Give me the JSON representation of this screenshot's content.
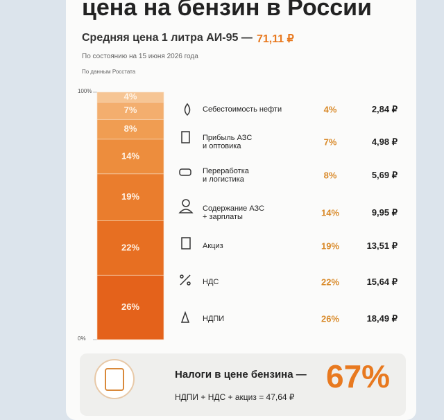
{
  "chart_data": {
    "type": "stacked_bar",
    "title": "цена на бензин в России",
    "subtitle": "Средняя цена 1 литра АИ-95 —",
    "price_label": "71,11 ₽",
    "note": "По состоянию на 15 июня 2026 года",
    "source": "По данным Росстата",
    "ylim": [
      0,
      100
    ],
    "yticks": [
      {
        "value": 0,
        "label": "0%"
      },
      {
        "value": 100,
        "label": "100%"
      }
    ],
    "series": [
      {
        "name": "Себестоимость нефти",
        "color": "#f6c594",
        "values": [
          4
        ],
        "value_labels": [
          "4%"
        ]
      },
      {
        "name": "Прибыль АЗС\nи оптовика",
        "color": "#f3ae6e",
        "values": [
          7
        ],
        "value_labels": [
          "7%"
        ]
      },
      {
        "name": "Переработка\nи логистика",
        "color": "#f09d52",
        "values": [
          8
        ],
        "value_labels": [
          "8%"
        ]
      },
      {
        "name": "Содержание АЗС\n+ зарплаты",
        "color": "#ed8d3d",
        "values": [
          14
        ],
        "value_labels": [
          "14%"
        ]
      },
      {
        "name": "Акциз",
        "color": "#ea7d2d",
        "values": [
          19
        ],
        "value_labels": [
          "19%"
        ]
      },
      {
        "name": "НДС",
        "color": "#e76f22",
        "values": [
          22
        ],
        "value_labels": [
          "22%"
        ]
      },
      {
        "name": "НДПИ",
        "color": "#e4621b",
        "values": [
          26
        ],
        "value_labels": [
          "26%"
        ]
      }
    ],
    "rub_labels": [
      "2,84 ₽",
      "4,98 ₽",
      "5,69 ₽",
      "9,95 ₽",
      "13,51 ₽",
      "15,64 ₽",
      "18,49 ₽"
    ],
    "footer": {
      "tax_title": "Налоги в цене бензина —",
      "tax_share": "67%",
      "tax_formula": "НДПИ + НДС + акциз = 47,64 ₽"
    }
  }
}
